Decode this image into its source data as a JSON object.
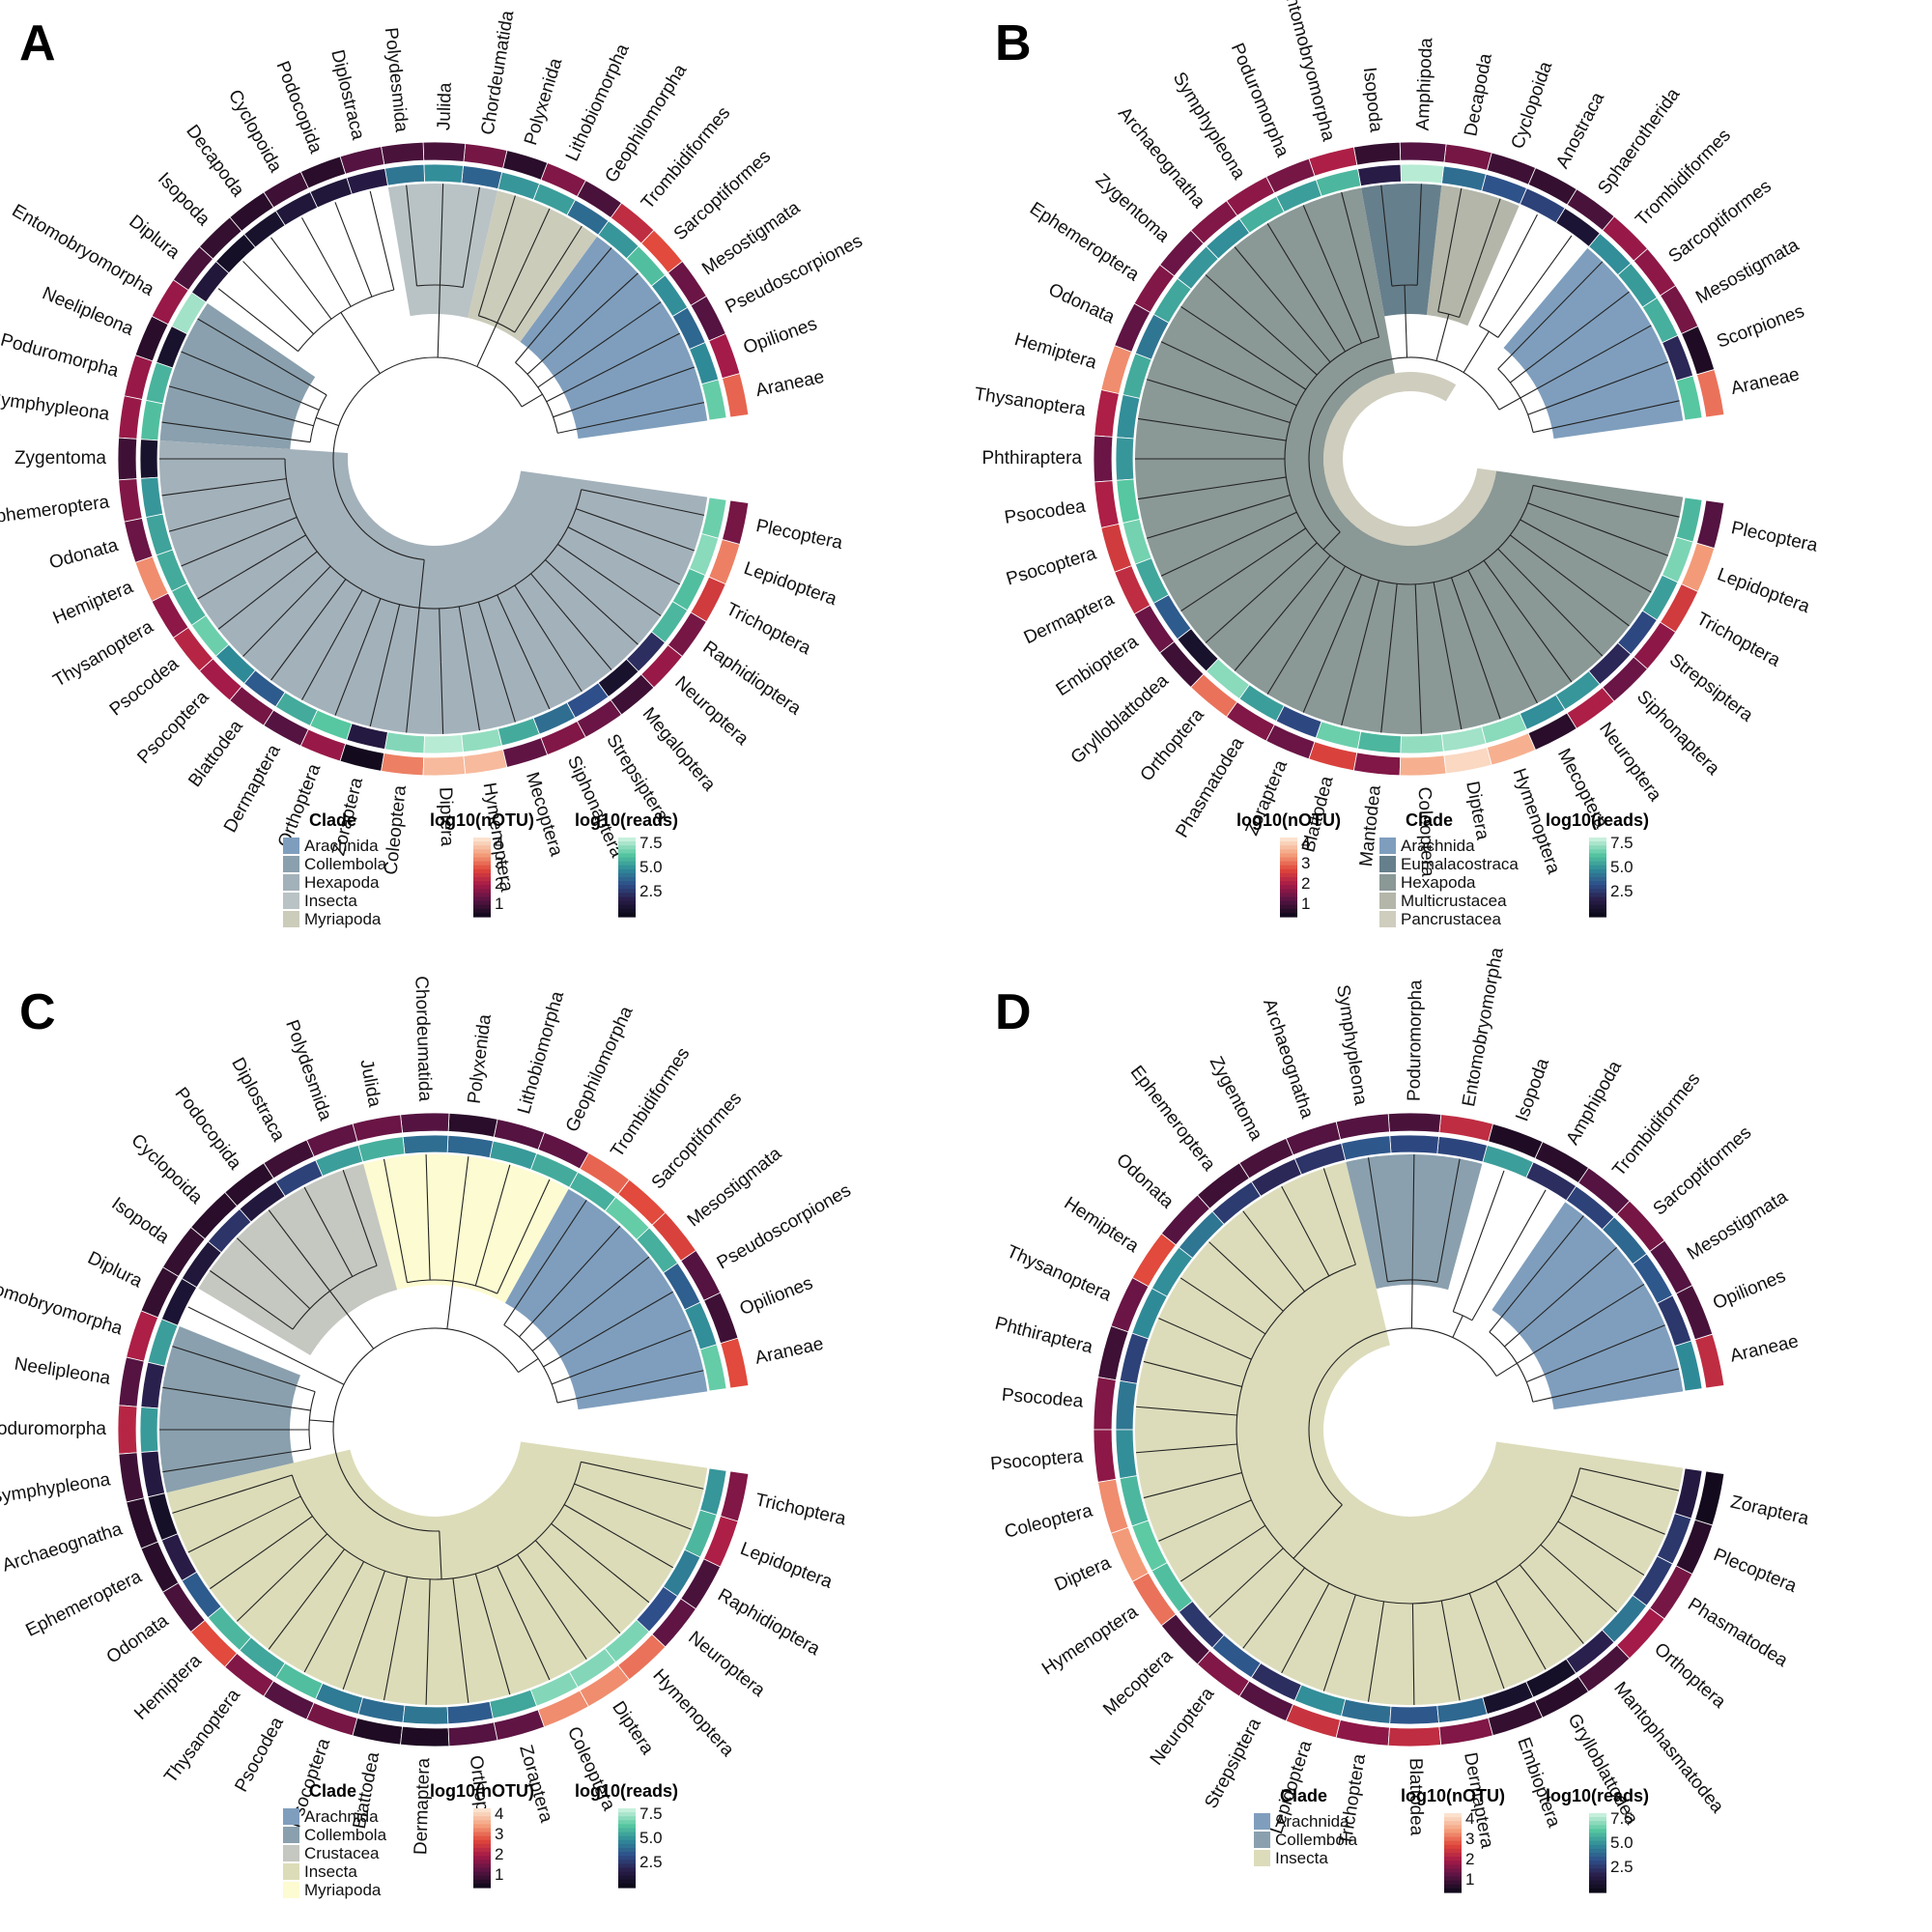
{
  "colors": {
    "nOTU_gradient": [
      "#140a1e",
      "#5a1444",
      "#a61a48",
      "#e0473a",
      "#f4a07c",
      "#fbe2cf"
    ],
    "reads_gradient": [
      "#0d0a1a",
      "#2a1d4a",
      "#2e4f8a",
      "#2f8a98",
      "#56c7a0",
      "#c6f0dc"
    ],
    "clades": {
      "Arachnida": "#7f9ebd",
      "Collembola": "#8aa0ae",
      "Hexapoda": "#a3b1ba",
      "Insecta_A": "#b9c3c5",
      "Myriapoda_A": "#ccccbb",
      "Eumalacostraca": "#667f8c",
      "Hexapoda_B": "#8a9896",
      "Multicrustacea": "#b3b6a9",
      "Pancrustacea": "#cfcdbd",
      "Crustacea": "#c5c7c1",
      "Insecta_C": "#dcdcb9",
      "Myriapoda_C": "#fdfbd1",
      "Insecta_D": "#dcdcbb"
    }
  },
  "panels": [
    {
      "letter": "A",
      "tips": [
        "Araneae",
        "Opiliones",
        "Pseudoscorpiones",
        "Mesostigmata",
        "Sarcoptiformes",
        "Trombidiformes",
        "Geophilomorpha",
        "Lithobiomorpha",
        "Polyxenida",
        "Chordeumatida",
        "Julida",
        "Polydesmida",
        "Diplostraca",
        "Podocopida",
        "Cyclopoida",
        "Decapoda",
        "Isopoda",
        "Diplura",
        "Entomobryomorpha",
        "Neelipleona",
        "Poduromorpha",
        "Symphypleona",
        "Zygentoma",
        "Ephemeroptera",
        "Odonata",
        "Hemiptera",
        "Thysanoptera",
        "Psocodea",
        "Psocoptera",
        "Blattodea",
        "Dermaptera",
        "Orthoptera",
        "Zoraptera",
        "Coleoptera",
        "Diptera",
        "Hymenoptera",
        "Mecoptera",
        "Siphonaptera",
        "Strepsiptera",
        "Megaloptera",
        "Neuroptera",
        "Raphidioptera",
        "Trichoptera",
        "Lepidoptera",
        "Plecoptera"
      ],
      "notu": [
        3.2,
        2.3,
        1.6,
        1.8,
        3.0,
        2.6,
        1.5,
        2.0,
        1.2,
        1.9,
        1.5,
        1.5,
        1.6,
        1.2,
        1.4,
        1.2,
        1.3,
        1.5,
        2.2,
        1.2,
        2.2,
        2.2,
        1.4,
        2.0,
        1.8,
        3.5,
        2.1,
        2.5,
        2.3,
        1.9,
        1.6,
        2.2,
        1.0,
        3.4,
        3.9,
        3.9,
        1.7,
        2.0,
        1.8,
        1.4,
        2.2,
        1.9,
        2.8,
        3.4,
        1.9
      ],
      "reads": [
        7.2,
        5.5,
        4.6,
        5.6,
        6.8,
        5.8,
        4.7,
        6.0,
        5.8,
        4.5,
        5.6,
        5.0,
        2.3,
        2.0,
        2.0,
        1.6,
        1.4,
        2.0,
        8.0,
        1.6,
        6.5,
        6.8,
        1.6,
        5.8,
        6.1,
        6.3,
        6.5,
        7.3,
        5.5,
        4.3,
        6.3,
        7.0,
        2.2,
        7.6,
        8.3,
        7.8,
        6.3,
        4.8,
        4.0,
        1.6,
        3.0,
        6.6,
        6.8,
        7.7,
        7.3
      ],
      "clades": [
        {
          "name": "Arachnida",
          "color_key": "Arachnida",
          "range": [
            0,
            5
          ]
        },
        {
          "name": "Myriapoda",
          "color_key": "Myriapoda_A",
          "range": [
            6,
            8
          ]
        },
        {
          "name": "Insecta",
          "color_key": "Insecta_A",
          "range": [
            9,
            11
          ]
        },
        {
          "name": "Collembola",
          "color_key": "Collembola",
          "range": [
            18,
            21
          ]
        },
        {
          "name": "Hexapoda",
          "color_key": "Hexapoda",
          "range": [
            22,
            44
          ]
        }
      ],
      "legend": {
        "clade_title": "Clade",
        "clade_items": [
          {
            "label": "Arachnida",
            "color": "#7f9ebd"
          },
          {
            "label": "Collembola",
            "color": "#8aa0ae"
          },
          {
            "label": "Hexapoda",
            "color": "#a3b1ba"
          },
          {
            "label": "Insecta",
            "color": "#b9c3c5"
          },
          {
            "label": "Myriapoda",
            "color": "#ccccbb"
          }
        ],
        "notu_title": "log10(nOTU)",
        "notu_ticks": [
          "4",
          "3",
          "2",
          "1"
        ],
        "reads_title": "log10(reads)",
        "reads_ticks": [
          "7.5",
          "5.0",
          "2.5"
        ],
        "order": [
          "clade",
          "notu",
          "reads"
        ]
      }
    },
    {
      "letter": "B",
      "tips": [
        "Araneae",
        "Scorpiones",
        "Mesostigmata",
        "Sarcoptiformes",
        "Trombidiformes",
        "Sphaerotherida",
        "Anostraca",
        "Cyclopoida",
        "Decapoda",
        "Amphipoda",
        "Isopoda",
        "Entomobryomorpha",
        "Poduromorpha",
        "Symphypleona",
        "Archaeognatha",
        "Zygentoma",
        "Ephemeroptera",
        "Odonata",
        "Hemiptera",
        "Thysanoptera",
        "Phthiraptera",
        "Psocodea",
        "Psocoptera",
        "Dermaptera",
        "Embioptera",
        "Grylloblattodea",
        "Orthoptera",
        "Phasmatodea",
        "Zoraptera",
        "Blattodea",
        "Mantodea",
        "Coleoptera",
        "Diptera",
        "Hymenoptera",
        "Mecoptera",
        "Neuroptera",
        "Siphonaptera",
        "Strepsiptera",
        "Trichoptera",
        "Lepidoptera",
        "Plecoptera"
      ],
      "notu": [
        3.3,
        1.1,
        1.9,
        2.1,
        2.2,
        1.5,
        1.3,
        1.4,
        1.9,
        1.6,
        1.3,
        2.4,
        1.9,
        2.1,
        2.0,
        1.8,
        2.0,
        1.7,
        3.5,
        2.4,
        1.8,
        2.4,
        2.8,
        2.6,
        1.8,
        1.4,
        3.3,
        2.0,
        1.8,
        2.9,
        2.0,
        3.8,
        4.2,
        3.8,
        1.2,
        2.4,
        1.8,
        2.1,
        2.8,
        3.6,
        1.6
      ],
      "reads": [
        7.0,
        2.8,
        6.4,
        5.9,
        5.6,
        1.8,
        3.6,
        4.1,
        4.8,
        8.3,
        2.4,
        6.6,
        6.0,
        6.4,
        5.6,
        5.8,
        6.2,
        5.0,
        6.3,
        5.6,
        5.8,
        7.0,
        7.4,
        6.2,
        4.3,
        1.6,
        7.7,
        6.0,
        3.8,
        7.3,
        6.6,
        7.8,
        8.0,
        7.7,
        5.6,
        5.8,
        2.8,
        3.8,
        6.0,
        7.5,
        6.6
      ],
      "clades": [
        {
          "name": "Arachnida",
          "color_key": "Arachnida",
          "range": [
            0,
            4
          ]
        },
        {
          "name": "Multicrustacea",
          "color_key": "Multicrustacea",
          "range": [
            7,
            8
          ]
        },
        {
          "name": "Eumalacostraca",
          "color_key": "Eumalacostraca",
          "range": [
            9,
            10
          ]
        },
        {
          "name": "Hexapoda",
          "color_key": "Hexapoda_B",
          "range": [
            11,
            40
          ]
        }
      ],
      "pancrustacea_ring": true,
      "legend": {
        "clade_title": "Clade",
        "clade_items": [
          {
            "label": "Arachnida",
            "color": "#7f9ebd"
          },
          {
            "label": "Eumalacostraca",
            "color": "#667f8c"
          },
          {
            "label": "Hexapoda",
            "color": "#8a9896"
          },
          {
            "label": "Multicrustacea",
            "color": "#b3b6a9"
          },
          {
            "label": "Pancrustacea",
            "color": "#cfcdbd"
          }
        ],
        "notu_title": "log10(nOTU)",
        "notu_ticks": [
          "4",
          "3",
          "2",
          "1"
        ],
        "reads_title": "log10(reads)",
        "reads_ticks": [
          "7.5",
          "5.0",
          "2.5"
        ],
        "order": [
          "notu",
          "clade",
          "reads"
        ]
      }
    },
    {
      "letter": "C",
      "tips": [
        "Araneae",
        "Opiliones",
        "Pseudoscorpiones",
        "Mesostigmata",
        "Sarcoptiformes",
        "Trombidiformes",
        "Geophilomorpha",
        "Lithobiomorpha",
        "Polyxenida",
        "Chordeumatida",
        "Julida",
        "Polydesmida",
        "Diplostraca",
        "Podocopida",
        "Cyclopoida",
        "Isopoda",
        "Diplura",
        "Entomobryomorpha",
        "Neelipleona",
        "Poduromorpha",
        "Symphypleona",
        "Archaeognatha",
        "Ephemeroptera",
        "Odonata",
        "Hemiptera",
        "Thysanoptera",
        "Psocodea",
        "Psocoptera",
        "Blattodea",
        "Dermaptera",
        "Orthoptera",
        "Zoraptera",
        "Coleoptera",
        "Diptera",
        "Hymenoptera",
        "Neuroptera",
        "Raphidioptera",
        "Lepidoptera",
        "Trichoptera"
      ],
      "notu": [
        3.0,
        1.4,
        1.6,
        2.9,
        3.0,
        3.2,
        1.7,
        1.6,
        1.2,
        1.6,
        1.8,
        1.7,
        1.4,
        1.2,
        1.2,
        1.3,
        1.3,
        2.4,
        1.6,
        2.5,
        1.4,
        1.2,
        1.2,
        1.5,
        3.0,
        2.0,
        1.6,
        1.9,
        1.1,
        1.1,
        1.6,
        1.7,
        3.5,
        3.5,
        3.3,
        1.7,
        1.5,
        2.4,
        2.0
      ],
      "reads": [
        7.2,
        5.6,
        4.4,
        6.4,
        7.2,
        6.4,
        6.3,
        5.9,
        4.6,
        4.8,
        6.4,
        6.0,
        3.6,
        2.1,
        3.2,
        2.0,
        1.8,
        6.0,
        2.6,
        5.9,
        2.2,
        1.4,
        2.4,
        4.3,
        6.6,
        6.2,
        6.8,
        5.1,
        4.7,
        5.0,
        4.3,
        6.2,
        7.6,
        7.6,
        7.5,
        4.0,
        5.2,
        6.6,
        5.8
      ],
      "clades": [
        {
          "name": "Arachnida",
          "color_key": "Arachnida",
          "range": [
            0,
            5
          ]
        },
        {
          "name": "Myriapoda",
          "color_key": "Myriapoda_C",
          "range": [
            6,
            10
          ]
        },
        {
          "name": "Crustacea",
          "color_key": "Crustacea",
          "range": [
            11,
            15
          ]
        },
        {
          "name": "Collembola",
          "color_key": "Collembola",
          "range": [
            17,
            20
          ]
        },
        {
          "name": "Insecta",
          "color_key": "Insecta_C",
          "range": [
            21,
            38
          ]
        }
      ],
      "legend": {
        "clade_title": "Clade",
        "clade_items": [
          {
            "label": "Arachnida",
            "color": "#7f9ebd"
          },
          {
            "label": "Collembola",
            "color": "#8aa0ae"
          },
          {
            "label": "Crustacea",
            "color": "#c5c7c1"
          },
          {
            "label": "Insecta",
            "color": "#dcdcb9"
          },
          {
            "label": "Myriapoda",
            "color": "#fdfbd1"
          }
        ],
        "notu_title": "log10(nOTU)",
        "notu_ticks": [
          "4",
          "3",
          "2",
          "1"
        ],
        "reads_title": "log10(reads)",
        "reads_ticks": [
          "7.5",
          "5.0",
          "2.5"
        ],
        "order": [
          "clade",
          "notu",
          "reads"
        ]
      }
    },
    {
      "letter": "D",
      "tips": [
        "Araneae",
        "Opiliones",
        "Mesostigmata",
        "Sarcoptiformes",
        "Trombidiformes",
        "Amphipoda",
        "Isopoda",
        "Entomobryomorpha",
        "Poduromorpha",
        "Symphypleona",
        "Archaeognatha",
        "Zygentoma",
        "Ephemeroptera",
        "Odonata",
        "Hemiptera",
        "Thysanoptera",
        "Phthiraptera",
        "Psocodea",
        "Psocoptera",
        "Coleoptera",
        "Diptera",
        "Hymenoptera",
        "Mecoptera",
        "Neuroptera",
        "Strepsiptera",
        "Lepidoptera",
        "Trichoptera",
        "Blattodea",
        "Dermaptera",
        "Embioptera",
        "Grylloblattodea",
        "Mantophasmatodea",
        "Orthoptera",
        "Phasmatodea",
        "Plecoptera",
        "Zoraptera"
      ],
      "notu": [
        2.6,
        1.5,
        1.6,
        1.9,
        1.6,
        1.2,
        1.1,
        2.6,
        1.5,
        1.6,
        1.6,
        1.5,
        1.4,
        1.6,
        3.0,
        1.8,
        1.4,
        2.0,
        2.1,
        3.5,
        3.6,
        3.3,
        1.5,
        2.0,
        1.6,
        2.7,
        2.1,
        2.6,
        2.0,
        1.3,
        1.2,
        1.5,
        2.3,
        1.9,
        1.2,
        1.0
      ],
      "reads": [
        5.5,
        3.3,
        4.2,
        4.6,
        3.6,
        3.0,
        6.0,
        3.7,
        3.8,
        4.2,
        3.2,
        2.8,
        3.4,
        5.0,
        5.6,
        5.5,
        3.6,
        5.0,
        5.6,
        6.6,
        7.1,
        6.8,
        3.3,
        4.2,
        3.0,
        5.6,
        4.8,
        4.2,
        4.6,
        1.6,
        1.4,
        2.6,
        5.0,
        3.4,
        3.3,
        2.2
      ],
      "clades": [
        {
          "name": "Arachnida",
          "color_key": "Arachnida",
          "range": [
            0,
            4
          ]
        },
        {
          "name": "Collembola",
          "color_key": "Collembola",
          "range": [
            7,
            9
          ]
        },
        {
          "name": "Insecta",
          "color_key": "Insecta_D",
          "range": [
            10,
            35
          ]
        }
      ],
      "legend": {
        "clade_title": "Clade",
        "clade_items": [
          {
            "label": "Arachnida",
            "color": "#7f9ebd"
          },
          {
            "label": "Collembola",
            "color": "#8aa0ae"
          },
          {
            "label": "Insecta",
            "color": "#dcdcbb"
          }
        ],
        "notu_title": "log10(nOTU)",
        "notu_ticks": [
          "4",
          "3",
          "2",
          "1"
        ],
        "reads_title": "log10(reads)",
        "reads_ticks": [
          "7.5",
          "5.0",
          "2.5"
        ],
        "order": [
          "clade",
          "notu",
          "reads"
        ]
      }
    }
  ]
}
